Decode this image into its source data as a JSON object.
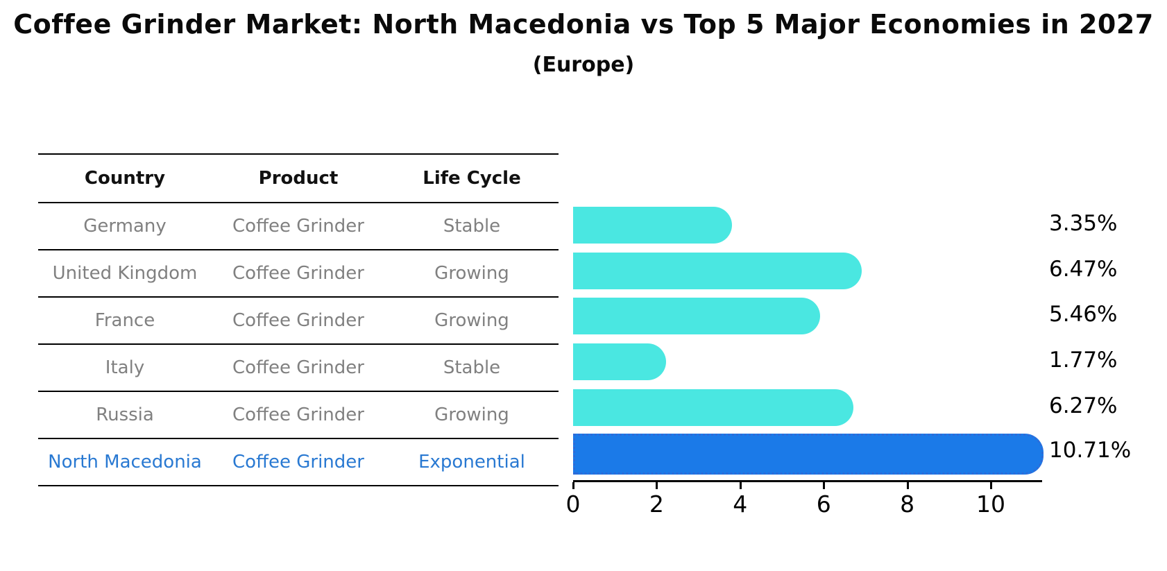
{
  "title": "Coffee Grinder Market: North Macedonia vs Top 5 Major Economies in 2027",
  "subtitle": "(Europe)",
  "colors": {
    "bar_default": "#4ae7e1",
    "bar_highlight": "#1b7ae8",
    "bar_highlight_border": "#2e6bd8",
    "table_text": "#808080",
    "table_header_text": "#111111",
    "highlight_text": "#2979d2",
    "axis": "#000000"
  },
  "table": {
    "headers": [
      "Country",
      "Product",
      "Life Cycle"
    ],
    "rows": [
      {
        "country": "Germany",
        "product": "Coffee Grinder",
        "life_cycle": "Stable",
        "highlight": false
      },
      {
        "country": "United Kingdom",
        "product": "Coffee Grinder",
        "life_cycle": "Growing",
        "highlight": false
      },
      {
        "country": "France",
        "product": "Coffee Grinder",
        "life_cycle": "Growing",
        "highlight": false
      },
      {
        "country": "Italy",
        "product": "Coffee Grinder",
        "life_cycle": "Stable",
        "highlight": false
      },
      {
        "country": "Russia",
        "product": "Coffee Grinder",
        "life_cycle": "Growing",
        "highlight": false
      },
      {
        "country": "North Macedonia",
        "product": "Coffee Grinder",
        "life_cycle": "Exponential",
        "highlight": true
      }
    ]
  },
  "chart_data": {
    "type": "bar",
    "orientation": "horizontal",
    "title": "Coffee Grinder Market: North Macedonia vs Top 5 Major Economies in 2027",
    "subtitle": "(Europe)",
    "categories": [
      "Germany",
      "United Kingdom",
      "France",
      "Italy",
      "Russia",
      "North Macedonia"
    ],
    "values": [
      3.35,
      6.47,
      5.46,
      1.77,
      6.27,
      10.71
    ],
    "value_labels": [
      "3.35%",
      "6.47%",
      "5.46%",
      "1.77%",
      "6.27%",
      "10.71%"
    ],
    "highlight_index": 5,
    "xlabel": "",
    "ylabel": "",
    "xlim": [
      0,
      11.2
    ],
    "xticks": [
      0,
      2,
      4,
      6,
      8,
      10
    ],
    "xtick_labels": [
      "0",
      "2",
      "4",
      "6",
      "8",
      "10"
    ],
    "grid": false,
    "legend": false
  }
}
